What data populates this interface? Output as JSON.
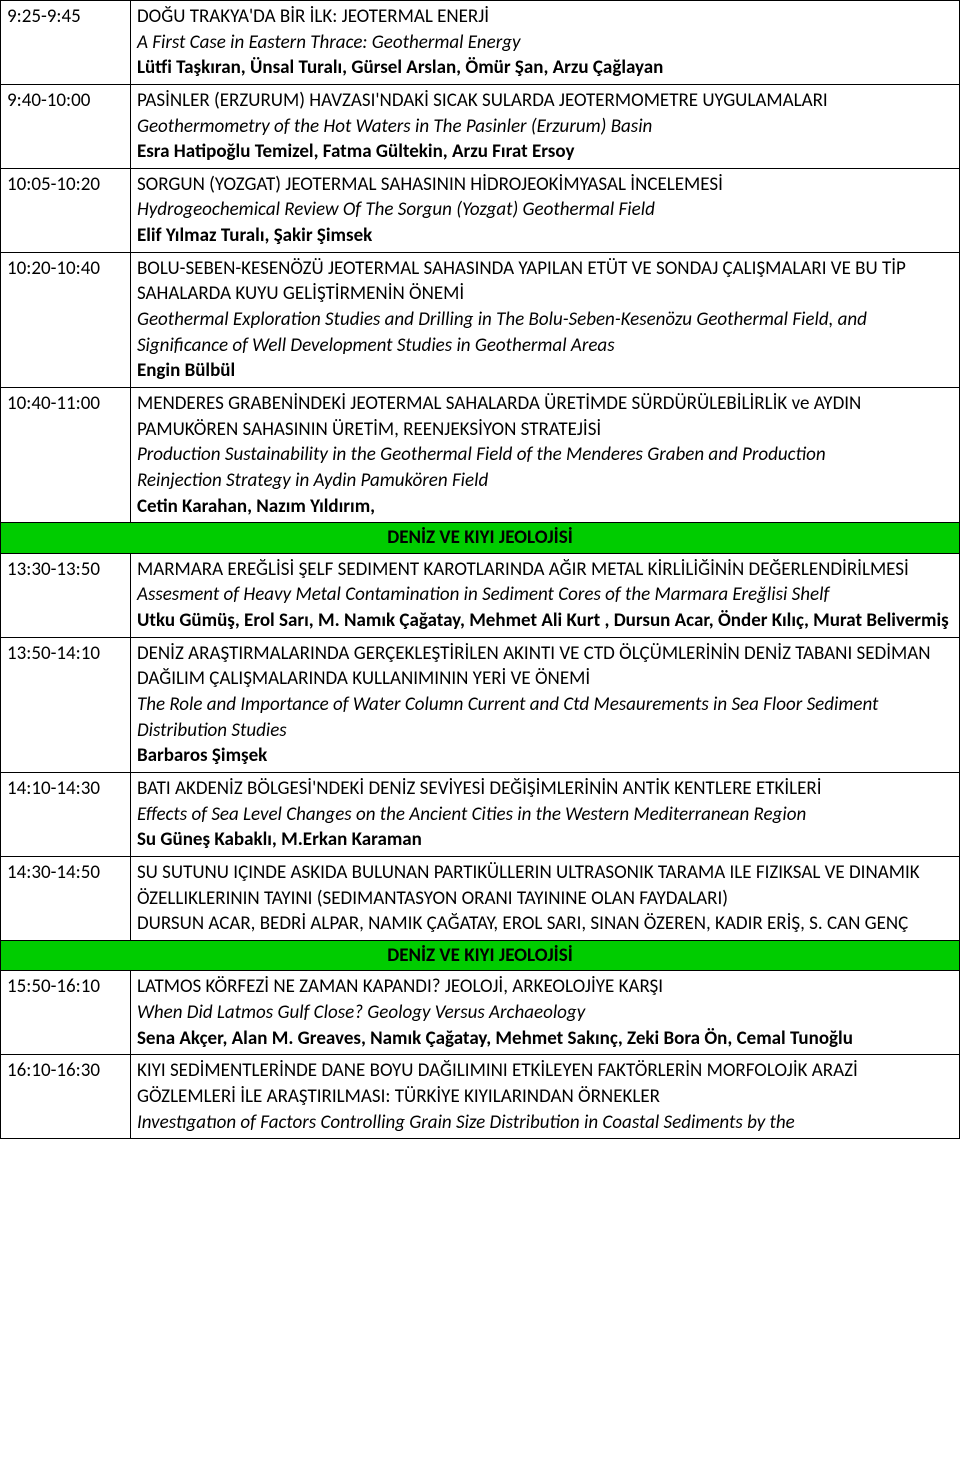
{
  "rows": [
    {
      "time": "9:25-9:45",
      "title_tr": "DOĞU TRAKYA'DA BİR İLK: JEOTERMAL ENERJİ",
      "title_en": "A First Case in Eastern Thrace: Geothermal Energy",
      "authors": "Lütfi Taşkıran, Ünsal Turalı, Gürsel Arslan, Ömür Şan, Arzu Çağlayan"
    },
    {
      "time": "9:40-10:00",
      "title_tr": "PASİNLER (ERZURUM) HAVZASI'NDAKİ SICAK SULARDA JEOTERMOMETRE UYGULAMALARI",
      "title_en": "Geothermometry of the Hot Waters in The Pasinler (Erzurum) Basin",
      "authors": "Esra Hatipoğlu Temizel, Fatma Gültekin, Arzu Fırat Ersoy"
    },
    {
      "time": "10:05-10:20",
      "title_tr": "SORGUN (YOZGAT) JEOTERMAL SAHASININ HİDROJEOKİMYASAL İNCELEMESİ",
      "title_en": "Hydrogeochemical Review Of The Sorgun (Yozgat) Geothermal Field",
      "authors": "Elif Yılmaz Turalı, Şakir Şimsek"
    },
    {
      "time": "10:20-10:40",
      "title_tr": "BOLU-SEBEN-KESENÖZÜ JEOTERMAL SAHASINDA YAPILAN ETÜT VE SONDAJ ÇALIŞMALARI VE BU TİP SAHALARDA KUYU GELİŞTİRMENİN ÖNEMİ",
      "title_en": "Geothermal Exploration Studies and Drilling in The Bolu-Seben-Kesenözu Geothermal Field, and Significance of Well Development Studies in Geothermal Areas",
      "authors": "Engin Bülbül"
    },
    {
      "time": "10:40-11:00",
      "title_tr": "MENDERES GRABENİNDEKİ JEOTERMAL SAHALARDA ÜRETİMDE SÜRDÜRÜLEBİLİRLİK ve AYDIN PAMUKÖREN SAHASININ ÜRETİM, REENJEKSİYON STRATEJİSİ",
      "title_en": "Production Sustainability in the Geothermal Field of the Menderes Graben and Production",
      "title_en2": "Reinjection Strategy in Aydin Pamukören Field",
      "authors": "Cetin Karahan, Nazım Yıldırım,"
    },
    {
      "section": "DENİZ VE KIYI JEOLOJİSİ"
    },
    {
      "time": "13:30-13:50",
      "title_tr": "MARMARA EREĞLİSİ ŞELF SEDIMENT KAROTLARINDA AĞIR METAL KİRLİLİĞİNİN DEĞERLENDİRİLMESİ",
      "title_en": "Assesment of Heavy Metal Contamination in Sediment Cores of the Marmara Ereğlisi Shelf",
      "authors": "Utku Gümüş, Erol Sarı, M. Namık Çağatay, Mehmet Ali Kurt , Dursun Acar, Önder Kılıç, Murat Belivermiş"
    },
    {
      "time": "13:50-14:10",
      "title_tr": "DENİZ ARAŞTIRMALARINDA GERÇEKLEŞTİRİLEN AKINTI VE CTD ÖLÇÜMLERİNİN DENİZ TABANI SEDİMAN DAĞILIM ÇALIŞMALARINDA KULLANIMININ YERİ VE ÖNEMİ",
      "title_en": "The Role and Importance of Water Column Current and Ctd Mesaurements in Sea Floor Sediment Distribution Studies",
      "authors": "Barbaros Şimşek"
    },
    {
      "time": "14:10-14:30",
      "title_tr": "BATI AKDENİZ BÖLGESİ'NDEKİ DENİZ SEVİYESİ DEĞİŞİMLERİNİN ANTİK KENTLERE ETKİLERİ",
      "title_en": "Effects of Sea Level Changes on the Ancient Cities  in the Western Mediterranean Region",
      "authors": "Su Güneş Kabaklı,  M.Erkan Karaman"
    },
    {
      "time": "14:30-14:50",
      "title_tr": "SU SUTUNU IÇINDE ASKIDA BULUNAN PARTIKÜLLERIN ULTRASONIK TARAMA ILE FIZIKSAL VE DINAMIK ÖZELLIKLERININ TAYINI (SEDIMANTASYON ORANI TAYININE OLAN FAYDALARI)",
      "plain": "DURSUN ACAR, BEDRİ ALPAR, NAMIK ÇAĞATAY, EROL SARI, SINAN ÖZEREN, KADIR ERİŞ, S. CAN GENÇ"
    },
    {
      "section": "DENİZ VE KIYI JEOLOJİSİ"
    },
    {
      "time": "15:50-16:10",
      "title_tr": "LATMOS KÖRFEZİ NE ZAMAN KAPANDI? JEOLOJİ, ARKEOLOJİYE KARŞI",
      "title_en": "When Did Latmos Gulf Close? Geology Versus Archaeology",
      "authors": "Sena Akçer, Alan M. Greaves, Namık Çağatay, Mehmet Sakınç, Zeki Bora Ön, Cemal Tunoğlu"
    },
    {
      "time": "16:10-16:30",
      "title_tr": "KIYI SEDİMENTLERİNDE DANE BOYU DAĞILIMINI ETKİLEYEN FAKTÖRLERİN MORFOLOJİK ARAZİ GÖZLEMLERİ İLE ARAŞTIRILMASI: TÜRKİYE KIYILARINDAN ÖRNEKLER",
      "title_en": "Investıgatıon of Factors Controlling Grain Size Distribution in Coastal Sediments by the"
    }
  ],
  "colors": {
    "border": "#000000",
    "section_bg": "#00cc00",
    "background": "#ffffff"
  }
}
